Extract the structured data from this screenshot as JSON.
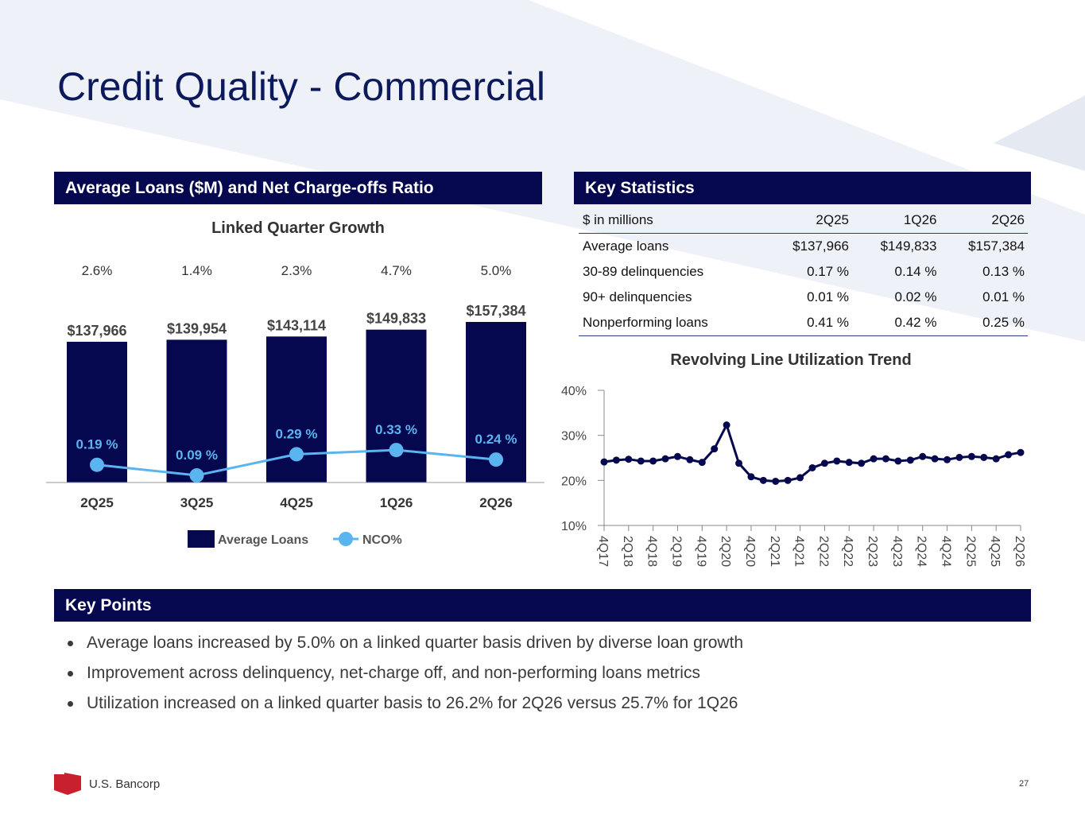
{
  "page": {
    "title": "Credit Quality - Commercial",
    "page_number": "27",
    "logo_text": "U.S. Bancorp"
  },
  "colors": {
    "navy": "#06084f",
    "title_blue": "#0c1a5c",
    "nco_light_blue": "#5ab4ef",
    "brand_red": "#c8202f",
    "background_shape": "#eef2f8"
  },
  "sections": {
    "loans_header": "Average Loans ($M) and Net Charge-offs Ratio",
    "stats_header": "Key Statistics",
    "points_header": "Key Points"
  },
  "key_statistics": {
    "columns": [
      "$ in millions",
      "2Q25",
      "1Q26",
      "2Q26"
    ],
    "rows": [
      [
        "Average loans",
        "$137,966",
        "$149,833",
        "$157,384"
      ],
      [
        "30-89 delinquencies",
        "0.17 %",
        "0.14 %",
        "0.13 %"
      ],
      [
        "90+ delinquencies",
        "0.01 %",
        "0.02 %",
        "0.01 %"
      ],
      [
        "Nonperforming loans",
        "0.41 %",
        "0.42 %",
        "0.25 %"
      ]
    ]
  },
  "key_points": [
    "Average loans increased by 5.0% on a linked quarter basis driven by diverse loan growth",
    "Improvement across delinquency, net-charge off, and non-performing loans metrics",
    "Utilization increased on a linked quarter basis to 26.2% for 2Q26 versus 25.7% for 1Q26"
  ],
  "chart_data": [
    {
      "type": "bar",
      "title": "Linked Quarter Growth",
      "categories": [
        "2Q25",
        "3Q25",
        "4Q25",
        "1Q26",
        "2Q26"
      ],
      "growth_labels": [
        "2.6%",
        "1.4%",
        "2.3%",
        "4.7%",
        "5.0%"
      ],
      "series": [
        {
          "name": "Average Loans",
          "type": "bar",
          "values": [
            137966,
            139954,
            143114,
            149833,
            157384
          ],
          "labels": [
            "$137,966",
            "$139,954",
            "$143,114",
            "$149,833",
            "$157,384"
          ]
        },
        {
          "name": "NCO%",
          "type": "line",
          "values": [
            0.19,
            0.09,
            0.29,
            0.33,
            0.24
          ],
          "labels": [
            "0.19 %",
            "0.09 %",
            "0.29 %",
            "0.33 %",
            "0.24 %"
          ]
        }
      ],
      "legend": "bottom"
    },
    {
      "type": "line",
      "title": "Revolving Line Utilization Trend",
      "ylim": [
        10,
        40
      ],
      "yticks": [
        "10%",
        "20%",
        "30%",
        "40%"
      ],
      "xtick_labels": [
        "4Q17",
        "2Q18",
        "4Q18",
        "2Q19",
        "4Q19",
        "2Q20",
        "4Q20",
        "2Q21",
        "4Q21",
        "2Q22",
        "4Q22",
        "2Q23",
        "4Q23",
        "2Q24",
        "4Q24",
        "2Q25",
        "4Q25",
        "2Q26"
      ],
      "x": [
        "4Q17",
        "1Q18",
        "2Q18",
        "3Q18",
        "4Q18",
        "1Q19",
        "2Q19",
        "3Q19",
        "4Q19",
        "1Q20",
        "2Q20",
        "3Q20",
        "4Q20",
        "1Q21",
        "2Q21",
        "3Q21",
        "4Q21",
        "1Q22",
        "2Q22",
        "3Q22",
        "4Q22",
        "1Q23",
        "2Q23",
        "3Q23",
        "4Q23",
        "1Q24",
        "2Q24",
        "3Q24",
        "4Q24",
        "1Q25",
        "2Q25",
        "3Q25",
        "4Q25",
        "1Q26",
        "2Q26"
      ],
      "values": [
        24.1,
        24.5,
        24.7,
        24.3,
        24.3,
        24.8,
        25.3,
        24.6,
        24.0,
        27.0,
        32.3,
        23.8,
        20.8,
        20.0,
        19.8,
        20.0,
        20.6,
        22.8,
        23.8,
        24.3,
        24.0,
        23.8,
        24.8,
        24.8,
        24.3,
        24.5,
        25.3,
        24.8,
        24.6,
        25.1,
        25.3,
        25.1,
        24.8,
        25.7,
        26.2
      ]
    }
  ]
}
